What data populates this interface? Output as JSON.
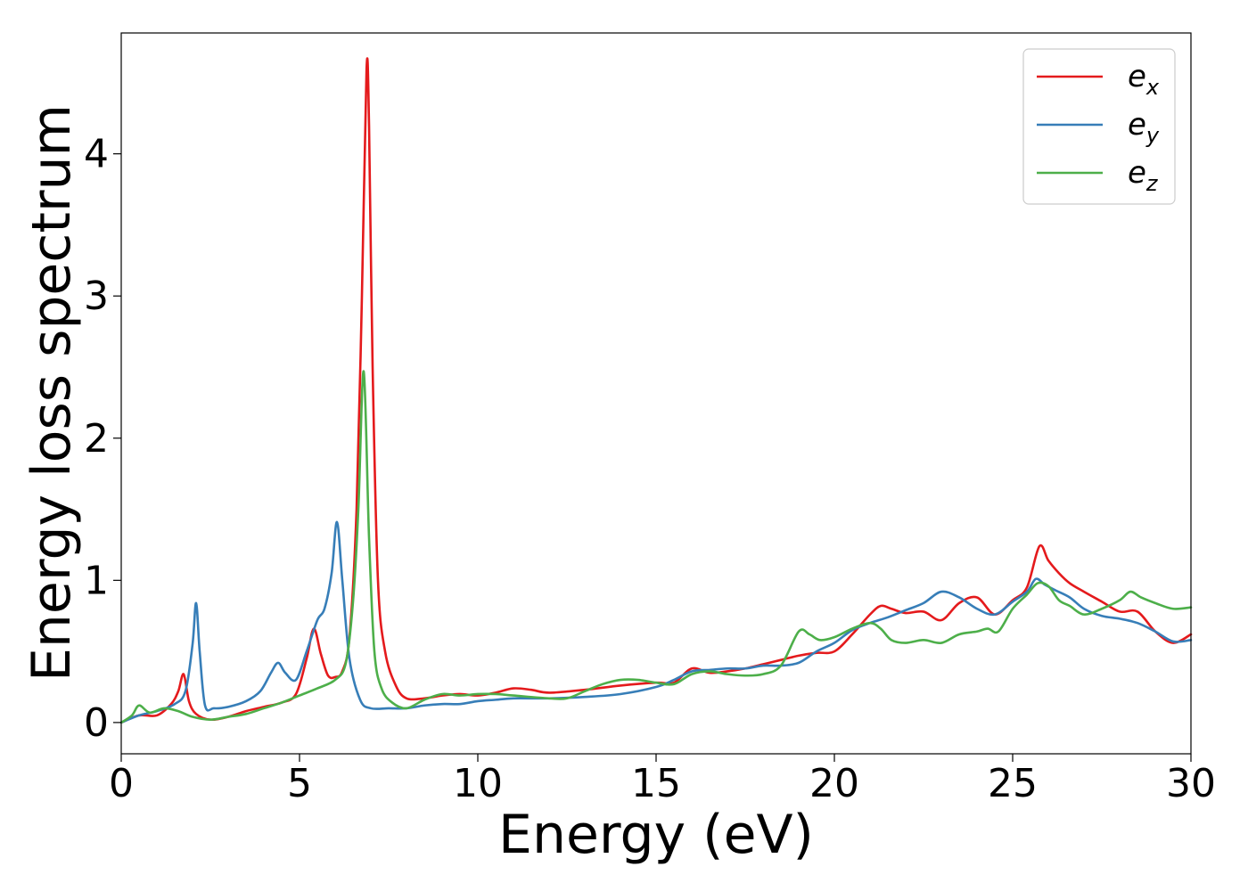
{
  "chart_data": {
    "type": "line",
    "title": "",
    "xlabel": "Energy (eV)",
    "ylabel": "Energy loss spectrum",
    "xlim": [
      0,
      30
    ],
    "ylim": [
      -0.22,
      4.85
    ],
    "x_ticks": [
      0,
      5,
      10,
      15,
      20,
      25,
      30
    ],
    "y_ticks": [
      0,
      1,
      2,
      3,
      4
    ],
    "grid": false,
    "legend_position": "top-right",
    "series": [
      {
        "name": "e_x",
        "label_base": "e",
        "label_sub": "x",
        "color": "#e41a1c",
        "x": [
          0,
          0.5,
          1.0,
          1.4,
          1.6,
          1.75,
          1.9,
          2.1,
          2.5,
          3.0,
          3.5,
          4.0,
          4.5,
          4.9,
          5.2,
          5.4,
          5.6,
          5.8,
          6.0,
          6.2,
          6.4,
          6.6,
          6.75,
          6.88,
          6.95,
          7.05,
          7.2,
          7.4,
          7.7,
          8.0,
          8.5,
          9.0,
          9.5,
          10.0,
          10.5,
          11.0,
          11.5,
          12.0,
          13.0,
          14.0,
          15.0,
          15.5,
          16.0,
          16.5,
          17.0,
          17.5,
          18.0,
          18.5,
          19.0,
          19.5,
          20.0,
          20.5,
          21.0,
          21.3,
          21.6,
          22.0,
          22.5,
          23.0,
          23.5,
          24.0,
          24.5,
          25.0,
          25.4,
          25.75,
          26.0,
          26.3,
          26.6,
          27.0,
          27.5,
          28.0,
          28.5,
          29.0,
          29.5,
          30.0
        ],
        "y": [
          0.0,
          0.05,
          0.05,
          0.13,
          0.22,
          0.34,
          0.15,
          0.06,
          0.02,
          0.04,
          0.08,
          0.11,
          0.14,
          0.2,
          0.45,
          0.66,
          0.48,
          0.33,
          0.32,
          0.36,
          0.6,
          1.5,
          3.0,
          4.6,
          4.2,
          2.5,
          1.0,
          0.5,
          0.26,
          0.17,
          0.17,
          0.19,
          0.2,
          0.19,
          0.21,
          0.24,
          0.23,
          0.21,
          0.23,
          0.26,
          0.28,
          0.28,
          0.38,
          0.35,
          0.36,
          0.38,
          0.41,
          0.44,
          0.47,
          0.49,
          0.5,
          0.62,
          0.76,
          0.82,
          0.8,
          0.77,
          0.78,
          0.72,
          0.84,
          0.88,
          0.76,
          0.86,
          0.95,
          1.24,
          1.14,
          1.05,
          0.98,
          0.92,
          0.85,
          0.78,
          0.78,
          0.64,
          0.56,
          0.62
        ]
      },
      {
        "name": "e_y",
        "label_base": "e",
        "label_sub": "y",
        "color": "#377eb8",
        "x": [
          0,
          0.5,
          1.0,
          1.5,
          1.8,
          2.0,
          2.1,
          2.2,
          2.35,
          2.6,
          3.0,
          3.5,
          3.9,
          4.2,
          4.4,
          4.6,
          4.9,
          5.2,
          5.5,
          5.7,
          5.9,
          6.05,
          6.2,
          6.4,
          6.7,
          7.0,
          7.5,
          8.0,
          8.5,
          9.0,
          9.5,
          10.0,
          10.5,
          11.0,
          12.0,
          13.0,
          14.0,
          15.0,
          15.5,
          16.0,
          16.5,
          17.0,
          17.5,
          18.0,
          18.5,
          19.0,
          19.5,
          20.0,
          20.5,
          21.0,
          21.5,
          22.0,
          22.5,
          23.0,
          23.5,
          24.0,
          24.5,
          25.0,
          25.4,
          25.65,
          25.9,
          26.2,
          26.6,
          27.0,
          27.5,
          28.0,
          28.5,
          29.0,
          29.5,
          30.0
        ],
        "y": [
          0.0,
          0.05,
          0.08,
          0.13,
          0.22,
          0.55,
          0.84,
          0.5,
          0.12,
          0.1,
          0.11,
          0.15,
          0.22,
          0.35,
          0.42,
          0.35,
          0.3,
          0.5,
          0.72,
          0.8,
          1.05,
          1.41,
          1.0,
          0.45,
          0.16,
          0.1,
          0.1,
          0.1,
          0.12,
          0.13,
          0.13,
          0.15,
          0.16,
          0.17,
          0.17,
          0.18,
          0.2,
          0.25,
          0.3,
          0.36,
          0.37,
          0.38,
          0.38,
          0.4,
          0.4,
          0.42,
          0.5,
          0.56,
          0.65,
          0.7,
          0.74,
          0.79,
          0.84,
          0.92,
          0.88,
          0.8,
          0.76,
          0.85,
          0.92,
          1.01,
          0.97,
          0.93,
          0.88,
          0.8,
          0.75,
          0.73,
          0.7,
          0.64,
          0.57,
          0.58
        ]
      },
      {
        "name": "e_z",
        "label_base": "e",
        "label_sub": "z",
        "color": "#4daf4a",
        "x": [
          0,
          0.3,
          0.5,
          0.8,
          1.2,
          1.6,
          2.0,
          2.5,
          3.0,
          3.5,
          4.0,
          4.5,
          5.0,
          5.5,
          6.0,
          6.3,
          6.5,
          6.65,
          6.8,
          6.95,
          7.1,
          7.3,
          7.6,
          8.0,
          8.5,
          9.0,
          9.5,
          10.0,
          10.5,
          11.0,
          12.0,
          12.5,
          13.0,
          13.5,
          14.0,
          14.5,
          15.0,
          15.5,
          16.0,
          16.5,
          17.0,
          17.5,
          18.0,
          18.5,
          19.0,
          19.3,
          19.6,
          20.0,
          20.5,
          21.0,
          21.3,
          21.6,
          22.0,
          22.5,
          23.0,
          23.5,
          24.0,
          24.3,
          24.6,
          25.0,
          25.4,
          25.7,
          26.0,
          26.3,
          26.6,
          27.0,
          27.5,
          28.0,
          28.3,
          28.6,
          29.0,
          29.5,
          30.0
        ],
        "y": [
          0.0,
          0.05,
          0.12,
          0.07,
          0.1,
          0.08,
          0.04,
          0.02,
          0.04,
          0.06,
          0.1,
          0.14,
          0.19,
          0.24,
          0.3,
          0.42,
          0.85,
          1.5,
          2.47,
          1.3,
          0.5,
          0.24,
          0.14,
          0.1,
          0.16,
          0.2,
          0.19,
          0.2,
          0.2,
          0.19,
          0.17,
          0.17,
          0.22,
          0.27,
          0.3,
          0.3,
          0.28,
          0.27,
          0.34,
          0.36,
          0.34,
          0.33,
          0.34,
          0.4,
          0.64,
          0.62,
          0.58,
          0.6,
          0.66,
          0.7,
          0.66,
          0.58,
          0.56,
          0.58,
          0.56,
          0.62,
          0.64,
          0.66,
          0.64,
          0.8,
          0.9,
          0.98,
          0.96,
          0.86,
          0.82,
          0.76,
          0.8,
          0.86,
          0.92,
          0.88,
          0.84,
          0.8,
          0.81
        ]
      }
    ]
  }
}
